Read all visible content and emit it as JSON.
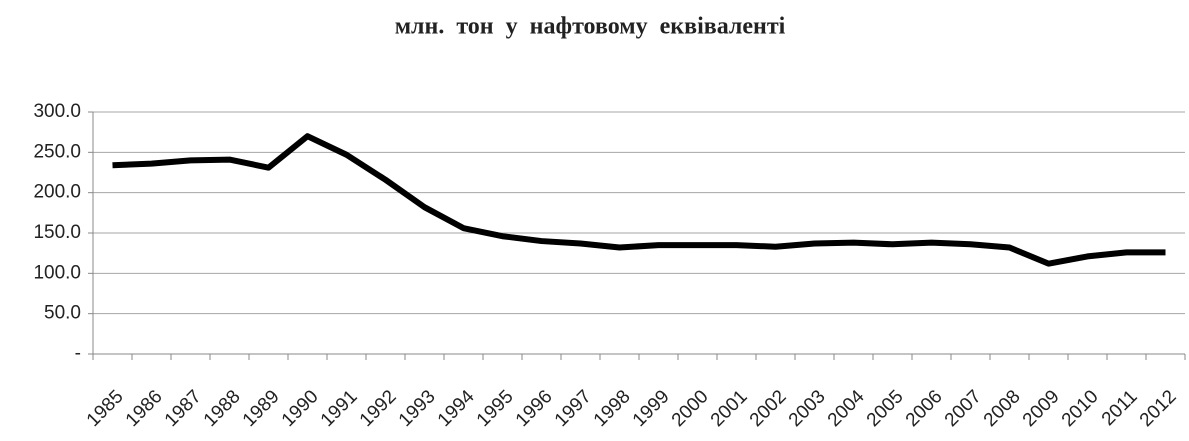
{
  "chart_data": {
    "type": "line",
    "title": "млн. тон у нафтовому еквіваленті",
    "categories": [
      "1985",
      "1986",
      "1987",
      "1988",
      "1989",
      "1990",
      "1991",
      "1992",
      "1993",
      "1994",
      "1995",
      "1996",
      "1997",
      "1998",
      "1999",
      "2000",
      "2001",
      "2002",
      "2003",
      "2004",
      "2005",
      "2006",
      "2007",
      "2008",
      "2009",
      "2010",
      "2011",
      "2012"
    ],
    "values": [
      234,
      236,
      240,
      241,
      231,
      270,
      247,
      216,
      182,
      156,
      146,
      140,
      137,
      132,
      135,
      135,
      135,
      133,
      137,
      138,
      136,
      138,
      136,
      132,
      112,
      121,
      126,
      126
    ],
    "color": "#000000",
    "ylim": [
      0,
      300
    ],
    "yticks": [
      {
        "value": 0,
        "label": "-"
      },
      {
        "value": 50,
        "label": "50.0"
      },
      {
        "value": 100,
        "label": "100.0"
      },
      {
        "value": 150,
        "label": "150.0"
      },
      {
        "value": 200,
        "label": "200.0"
      },
      {
        "value": 250,
        "label": "250.0"
      },
      {
        "value": 300,
        "label": "300.0"
      }
    ],
    "grid": true
  }
}
